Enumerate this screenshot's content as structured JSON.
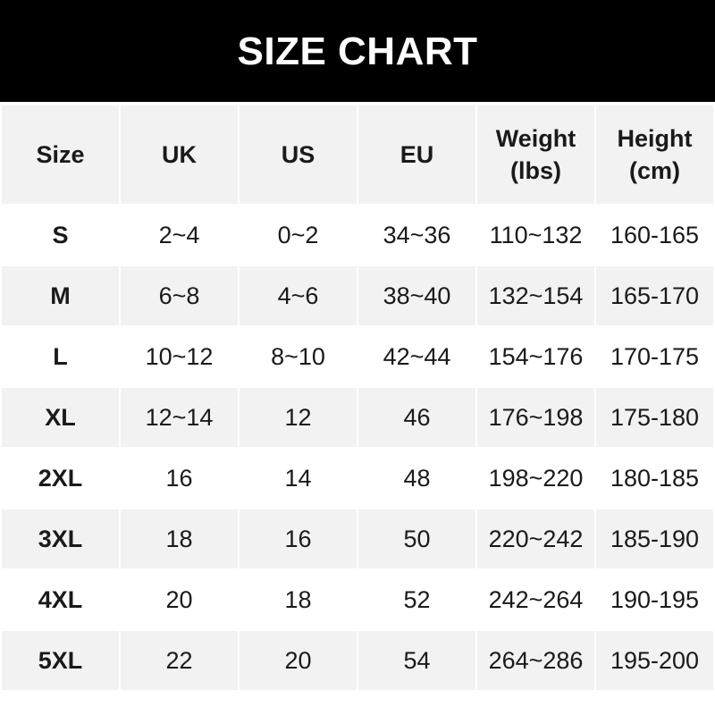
{
  "title": "SIZE CHART",
  "columns": [
    {
      "line1": "Size",
      "line2": ""
    },
    {
      "line1": "UK",
      "line2": ""
    },
    {
      "line1": "US",
      "line2": ""
    },
    {
      "line1": "EU",
      "line2": ""
    },
    {
      "line1": "Weight",
      "line2": "(lbs)"
    },
    {
      "line1": "Height",
      "line2": "(cm)"
    }
  ],
  "rows": [
    [
      "S",
      "2~4",
      "0~2",
      "34~36",
      "110~132",
      "160-165"
    ],
    [
      "M",
      "6~8",
      "4~6",
      "38~40",
      "132~154",
      "165-170"
    ],
    [
      "L",
      "10~12",
      "8~10",
      "42~44",
      "154~176",
      "170-175"
    ],
    [
      "XL",
      "12~14",
      "12",
      "46",
      "176~198",
      "175-180"
    ],
    [
      "2XL",
      "16",
      "14",
      "48",
      "198~220",
      "180-185"
    ],
    [
      "3XL",
      "18",
      "16",
      "50",
      "220~242",
      "185-190"
    ],
    [
      "4XL",
      "20",
      "18",
      "52",
      "242~264",
      "190-195"
    ],
    [
      "5XL",
      "22",
      "20",
      "54",
      "264~286",
      "195-200"
    ]
  ],
  "colors": {
    "header_bg": "#000000",
    "title": "#ffffff",
    "stripe": "#f2f2f2",
    "text": "#1a1a1a"
  }
}
